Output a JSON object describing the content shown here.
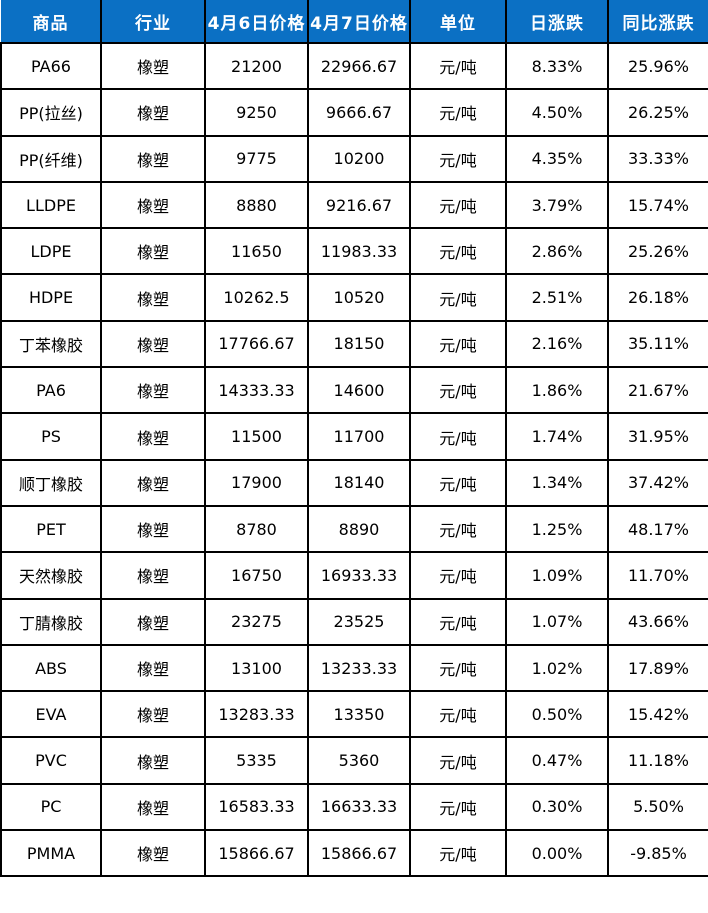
{
  "colors": {
    "header_bg": "#0b70c4",
    "header_text": "#ffffff",
    "up_red": "#fe0000",
    "down_green": "#00a650",
    "flat_black": "#000000",
    "border": "#000000"
  },
  "chart_data": {
    "type": "table",
    "columns": [
      "商品",
      "行业",
      "4月6日价格",
      "4月7日价格",
      "单位",
      "日涨跌",
      "同比涨跌"
    ],
    "rows": [
      {
        "product": "PA66",
        "industry": "橡塑",
        "price_apr6": "21200",
        "price_apr7": "22966.67",
        "unit": "元/吨",
        "day_change": "8.33%",
        "day_trend": "up",
        "yoy_change": "25.96%",
        "yoy_trend": "up"
      },
      {
        "product": "PP(拉丝)",
        "industry": "橡塑",
        "price_apr6": "9250",
        "price_apr7": "9666.67",
        "unit": "元/吨",
        "day_change": "4.50%",
        "day_trend": "up",
        "yoy_change": "26.25%",
        "yoy_trend": "up"
      },
      {
        "product": "PP(纤维)",
        "industry": "橡塑",
        "price_apr6": "9775",
        "price_apr7": "10200",
        "unit": "元/吨",
        "day_change": "4.35%",
        "day_trend": "up",
        "yoy_change": "33.33%",
        "yoy_trend": "up"
      },
      {
        "product": "LLDPE",
        "industry": "橡塑",
        "price_apr6": "8880",
        "price_apr7": "9216.67",
        "unit": "元/吨",
        "day_change": "3.79%",
        "day_trend": "up",
        "yoy_change": "15.74%",
        "yoy_trend": "up"
      },
      {
        "product": "LDPE",
        "industry": "橡塑",
        "price_apr6": "11650",
        "price_apr7": "11983.33",
        "unit": "元/吨",
        "day_change": "2.86%",
        "day_trend": "up",
        "yoy_change": "25.26%",
        "yoy_trend": "up"
      },
      {
        "product": "HDPE",
        "industry": "橡塑",
        "price_apr6": "10262.5",
        "price_apr7": "10520",
        "unit": "元/吨",
        "day_change": "2.51%",
        "day_trend": "up",
        "yoy_change": "26.18%",
        "yoy_trend": "up"
      },
      {
        "product": "丁苯橡胶",
        "industry": "橡塑",
        "price_apr6": "17766.67",
        "price_apr7": "18150",
        "unit": "元/吨",
        "day_change": "2.16%",
        "day_trend": "up",
        "yoy_change": "35.11%",
        "yoy_trend": "up"
      },
      {
        "product": "PA6",
        "industry": "橡塑",
        "price_apr6": "14333.33",
        "price_apr7": "14600",
        "unit": "元/吨",
        "day_change": "1.86%",
        "day_trend": "up",
        "yoy_change": "21.67%",
        "yoy_trend": "up"
      },
      {
        "product": "PS",
        "industry": "橡塑",
        "price_apr6": "11500",
        "price_apr7": "11700",
        "unit": "元/吨",
        "day_change": "1.74%",
        "day_trend": "up",
        "yoy_change": "31.95%",
        "yoy_trend": "up"
      },
      {
        "product": "顺丁橡胶",
        "industry": "橡塑",
        "price_apr6": "17900",
        "price_apr7": "18140",
        "unit": "元/吨",
        "day_change": "1.34%",
        "day_trend": "up",
        "yoy_change": "37.42%",
        "yoy_trend": "up"
      },
      {
        "product": "PET",
        "industry": "橡塑",
        "price_apr6": "8780",
        "price_apr7": "8890",
        "unit": "元/吨",
        "day_change": "1.25%",
        "day_trend": "up",
        "yoy_change": "48.17%",
        "yoy_trend": "up"
      },
      {
        "product": "天然橡胶",
        "industry": "橡塑",
        "price_apr6": "16750",
        "price_apr7": "16933.33",
        "unit": "元/吨",
        "day_change": "1.09%",
        "day_trend": "up",
        "yoy_change": "11.70%",
        "yoy_trend": "up"
      },
      {
        "product": "丁腈橡胶",
        "industry": "橡塑",
        "price_apr6": "23275",
        "price_apr7": "23525",
        "unit": "元/吨",
        "day_change": "1.07%",
        "day_trend": "up",
        "yoy_change": "43.66%",
        "yoy_trend": "up"
      },
      {
        "product": "ABS",
        "industry": "橡塑",
        "price_apr6": "13100",
        "price_apr7": "13233.33",
        "unit": "元/吨",
        "day_change": "1.02%",
        "day_trend": "up",
        "yoy_change": "17.89%",
        "yoy_trend": "up"
      },
      {
        "product": "EVA",
        "industry": "橡塑",
        "price_apr6": "13283.33",
        "price_apr7": "13350",
        "unit": "元/吨",
        "day_change": "0.50%",
        "day_trend": "up",
        "yoy_change": "15.42%",
        "yoy_trend": "up"
      },
      {
        "product": "PVC",
        "industry": "橡塑",
        "price_apr6": "5335",
        "price_apr7": "5360",
        "unit": "元/吨",
        "day_change": "0.47%",
        "day_trend": "up",
        "yoy_change": "11.18%",
        "yoy_trend": "up"
      },
      {
        "product": "PC",
        "industry": "橡塑",
        "price_apr6": "16583.33",
        "price_apr7": "16633.33",
        "unit": "元/吨",
        "day_change": "0.30%",
        "day_trend": "up",
        "yoy_change": "5.50%",
        "yoy_trend": "up"
      },
      {
        "product": "PMMA",
        "industry": "橡塑",
        "price_apr6": "15866.67",
        "price_apr7": "15866.67",
        "unit": "元/吨",
        "day_change": "0.00%",
        "day_trend": "flat",
        "yoy_change": "-9.85%",
        "yoy_trend": "down"
      }
    ]
  }
}
